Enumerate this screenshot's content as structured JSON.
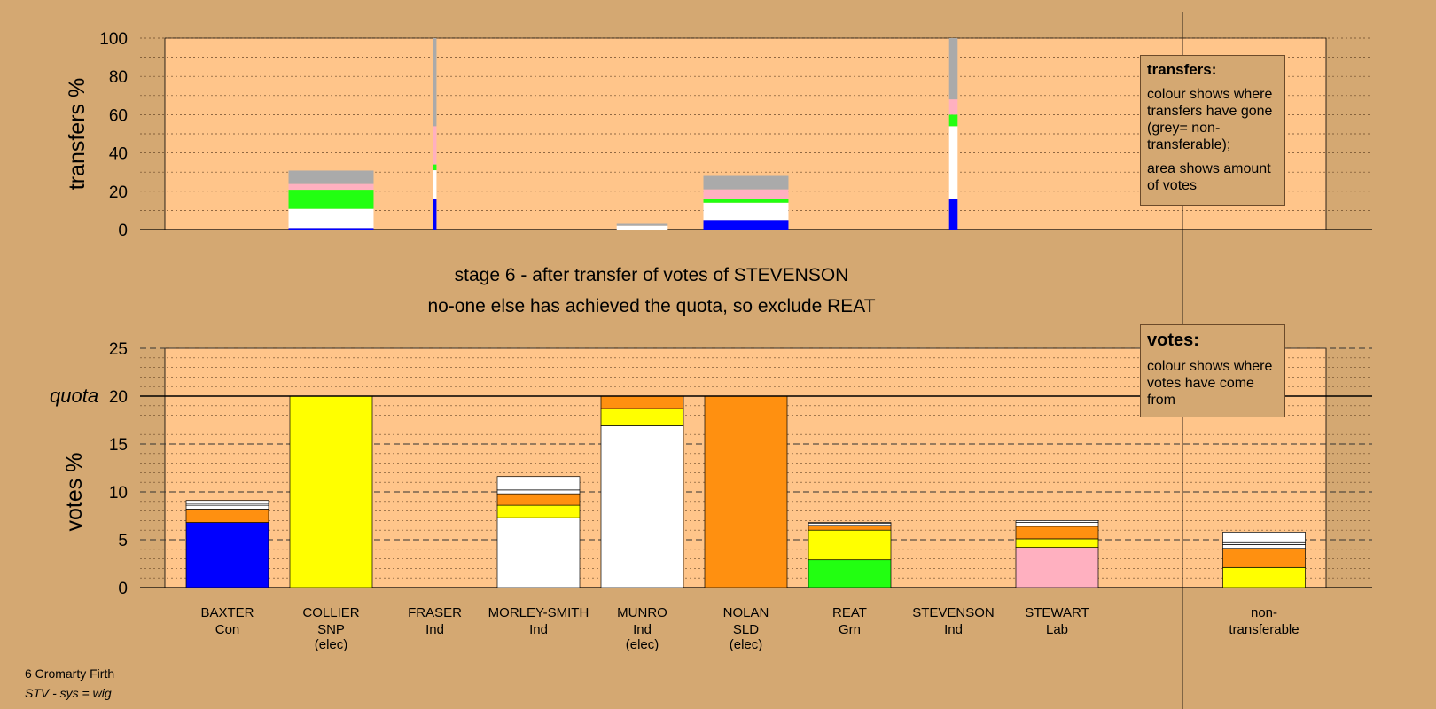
{
  "stage": {
    "line1": "stage 6 - after transfer of votes of STEVENSON",
    "line2": "no-one else has achieved the quota, so exclude REAT"
  },
  "legend_transfers": {
    "title": "transfers:",
    "text1": "colour shows where transfers have gone (grey= non-transferable);",
    "text2": "area shows amount of votes"
  },
  "legend_votes": {
    "title": "votes:",
    "text1": "colour shows where votes have come from"
  },
  "footer": {
    "area": "6 Cromarty Firth",
    "system": "STV - sys = wig"
  },
  "colors": {
    "Con": "#0000FF",
    "SNP": "#FFFF00",
    "Grn": "#22FF11",
    "Lab": "#FFB0C0",
    "SLD": "#FF9010",
    "Ind": "#FFFFFF",
    "nontransferable": "#AAAAAA",
    "plot_bg": "#FFC58A",
    "page_bg": "#D4A872"
  },
  "chart_data": [
    {
      "type": "bar",
      "ylabel": "transfers %",
      "ylim": [
        0,
        100
      ],
      "yticks": [
        0,
        20,
        40,
        60,
        80,
        100
      ],
      "bars": [
        {
          "candidate": "BAXTER",
          "width": 1.0,
          "segments": []
        },
        {
          "candidate": "COLLIER",
          "width": 1.0,
          "segments": [
            {
              "party": "Con",
              "value": 0.8
            },
            {
              "party": "Ind",
              "value": 10
            },
            {
              "party": "Grn",
              "value": 10
            },
            {
              "party": "Lab",
              "value": 3
            },
            {
              "party": "nontransferable",
              "value": 7
            }
          ]
        },
        {
          "candidate": "FRASER",
          "width": 0.04,
          "segments": [
            {
              "party": "Con",
              "value": 16
            },
            {
              "party": "Ind",
              "value": 15
            },
            {
              "party": "Grn",
              "value": 3
            },
            {
              "party": "Lab",
              "value": 20
            },
            {
              "party": "nontransferable",
              "value": 46
            }
          ]
        },
        {
          "candidate": "MORLEY-SMITH",
          "width": 1.0,
          "segments": []
        },
        {
          "candidate": "MUNRO",
          "width": 0.6,
          "segments": [
            {
              "party": "Ind",
              "value": 2
            },
            {
              "party": "nontransferable",
              "value": 1
            }
          ]
        },
        {
          "candidate": "NOLAN",
          "width": 1.0,
          "segments": [
            {
              "party": "Con",
              "value": 5
            },
            {
              "party": "Ind",
              "value": 9
            },
            {
              "party": "Grn",
              "value": 2
            },
            {
              "party": "Lab",
              "value": 5
            },
            {
              "party": "nontransferable",
              "value": 7
            }
          ]
        },
        {
          "candidate": "REAT",
          "width": 1.0,
          "segments": []
        },
        {
          "candidate": "STEVENSON",
          "width": 0.1,
          "segments": [
            {
              "party": "Con",
              "value": 16
            },
            {
              "party": "Ind",
              "value": 38
            },
            {
              "party": "Grn",
              "value": 6
            },
            {
              "party": "Lab",
              "value": 8
            },
            {
              "party": "nontransferable",
              "value": 32
            }
          ]
        },
        {
          "candidate": "STEWART",
          "width": 1.0,
          "segments": []
        }
      ]
    },
    {
      "type": "bar",
      "ylabel": "votes %",
      "ylim": [
        0,
        25
      ],
      "yticks": [
        0,
        5,
        10,
        15,
        20,
        25
      ],
      "quota": 20,
      "quota_label": "quota",
      "candidates": [
        {
          "name": "BAXTER",
          "party": "Con",
          "elected": "",
          "segments": [
            {
              "party": "Con",
              "value": 6.8
            },
            {
              "party": "SLD",
              "value": 1.4
            },
            {
              "party": "Ind",
              "value": 0.4
            },
            {
              "party": "Ind",
              "value": 0.2
            },
            {
              "party": "Ind",
              "value": 0.3
            }
          ]
        },
        {
          "name": "COLLIER",
          "party": "SNP",
          "elected": "(elec)",
          "segments": [
            {
              "party": "SNP",
              "value": 20
            }
          ]
        },
        {
          "name": "FRASER",
          "party": "Ind",
          "elected": "",
          "segments": []
        },
        {
          "name": "MORLEY-SMITH",
          "party": "Ind",
          "elected": "",
          "segments": [
            {
              "party": "Ind",
              "value": 7.3
            },
            {
              "party": "SNP",
              "value": 1.3
            },
            {
              "party": "SLD",
              "value": 1.2
            },
            {
              "party": "Ind",
              "value": 0.4
            },
            {
              "party": "Ind",
              "value": 0.3
            },
            {
              "party": "Ind",
              "value": 1.1
            }
          ]
        },
        {
          "name": "MUNRO",
          "party": "Ind",
          "elected": "(elec)",
          "segments": [
            {
              "party": "Ind",
              "value": 16.9
            },
            {
              "party": "SNP",
              "value": 1.8
            },
            {
              "party": "SLD",
              "value": 1.3
            }
          ]
        },
        {
          "name": "NOLAN",
          "party": "SLD",
          "elected": "(elec)",
          "segments": [
            {
              "party": "SLD",
              "value": 20
            }
          ]
        },
        {
          "name": "REAT",
          "party": "Grn",
          "elected": "",
          "segments": [
            {
              "party": "Grn",
              "value": 2.9
            },
            {
              "party": "SNP",
              "value": 3.1
            },
            {
              "party": "SLD",
              "value": 0.5
            },
            {
              "party": "Ind",
              "value": 0.2
            },
            {
              "party": "Ind",
              "value": 0.1
            }
          ]
        },
        {
          "name": "STEVENSON",
          "party": "Ind",
          "elected": "",
          "segments": []
        },
        {
          "name": "STEWART",
          "party": "Lab",
          "elected": "",
          "segments": [
            {
              "party": "Lab",
              "value": 4.2
            },
            {
              "party": "SNP",
              "value": 0.9
            },
            {
              "party": "SLD",
              "value": 1.3
            },
            {
              "party": "Ind",
              "value": 0.4
            },
            {
              "party": "Ind",
              "value": 0.2
            }
          ]
        }
      ],
      "nontransferable": {
        "label": "non- transferable",
        "segments": [
          {
            "party": "SNP",
            "value": 2.1
          },
          {
            "party": "SLD",
            "value": 2.0
          },
          {
            "party": "Ind",
            "value": 0.4
          },
          {
            "party": "Ind",
            "value": 0.2
          },
          {
            "party": "Ind",
            "value": 1.1
          }
        ]
      }
    }
  ]
}
